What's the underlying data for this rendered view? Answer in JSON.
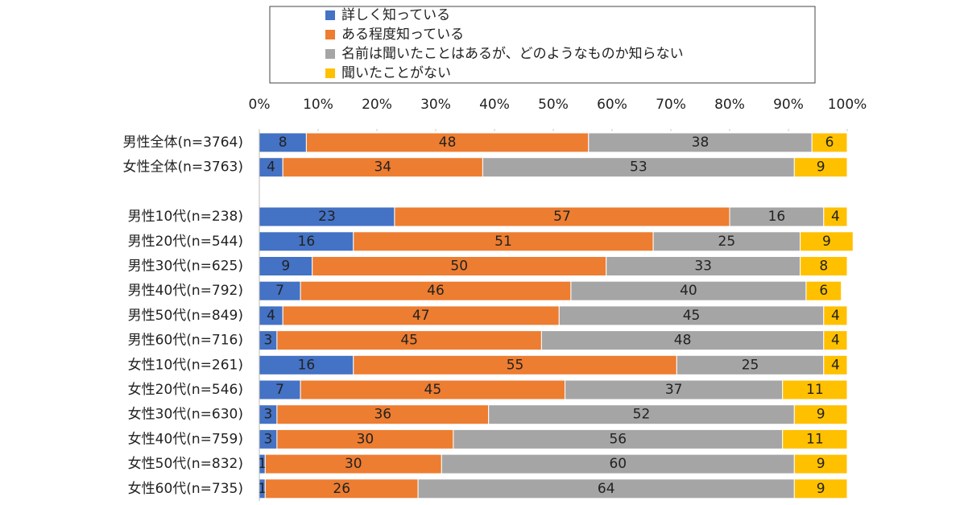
{
  "chart_data": {
    "type": "stacked-bar-horizontal",
    "categories": [
      "男性全体(n=3764)",
      "女性全体(n=3763)",
      null,
      "男性10代(n=238)",
      "男性20代(n=544)",
      "男性30代(n=625)",
      "男性40代(n=792)",
      "男性50代(n=849)",
      "男性60代(n=716)",
      "女性10代(n=261)",
      "女性20代(n=546)",
      "女性30代(n=630)",
      "女性40代(n=759)",
      "女性50代(n=832)",
      "女性60代(n=735)"
    ],
    "series": [
      {
        "name": "詳しく知っている",
        "color": "#4472c4",
        "values": [
          8,
          4,
          null,
          23,
          16,
          9,
          7,
          4,
          3,
          16,
          7,
          3,
          3,
          1,
          1
        ]
      },
      {
        "name": "ある程度知っている",
        "color": "#ed7d31",
        "values": [
          48,
          34,
          null,
          57,
          51,
          50,
          46,
          47,
          45,
          55,
          45,
          36,
          30,
          30,
          26
        ]
      },
      {
        "name": "名前は聞いたことはあるが、どのようなものか知らない",
        "color": "#a5a5a5",
        "values": [
          38,
          53,
          null,
          16,
          25,
          33,
          40,
          45,
          48,
          25,
          37,
          52,
          56,
          60,
          64
        ]
      },
      {
        "name": "聞いたことがない",
        "color": "#ffc000",
        "values": [
          6,
          9,
          null,
          4,
          9,
          8,
          6,
          4,
          4,
          4,
          11,
          9,
          11,
          9,
          9
        ]
      }
    ],
    "xlim": [
      0,
      100
    ],
    "xticks": [
      {
        "value": 0,
        "label": "0%"
      },
      {
        "value": 10,
        "label": "10%"
      },
      {
        "value": 20,
        "label": "20%"
      },
      {
        "value": 30,
        "label": "30%"
      },
      {
        "value": 40,
        "label": "40%"
      },
      {
        "value": 50,
        "label": "50%"
      },
      {
        "value": 60,
        "label": "60%"
      },
      {
        "value": 70,
        "label": "70%"
      },
      {
        "value": 80,
        "label": "80%"
      },
      {
        "value": 90,
        "label": "90%"
      },
      {
        "value": 100,
        "label": "100%"
      }
    ]
  }
}
